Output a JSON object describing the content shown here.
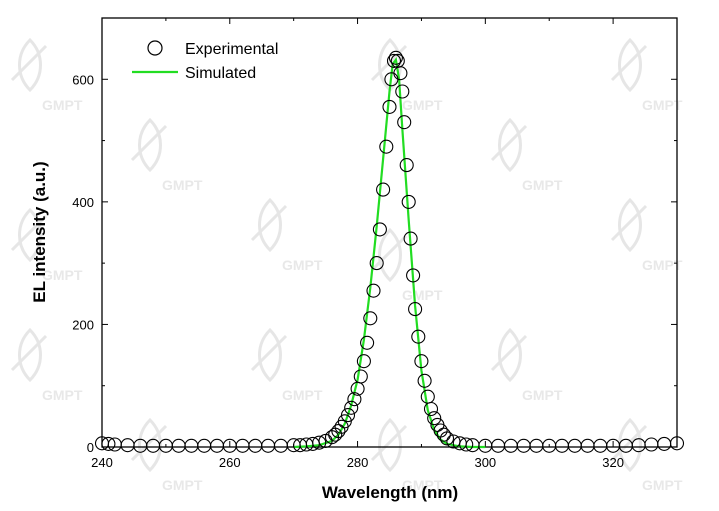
{
  "watermark": {
    "text": "GMPT",
    "color": "#e6e6e6"
  },
  "chart_data": {
    "type": "scatter",
    "xlabel": "Wavelength (nm)",
    "ylabel": "EL intensity (a.u.)",
    "xlim": [
      240,
      330
    ],
    "ylim": [
      0,
      700
    ],
    "xticks": [
      240,
      260,
      280,
      300,
      320
    ],
    "yticks": [
      0,
      200,
      400,
      600
    ],
    "grid": false,
    "legend_position": "top-left",
    "series": [
      {
        "name": "Experimental",
        "kind": "marker-open-circle",
        "color": "#000000",
        "x": [
          240,
          241,
          242,
          244,
          246,
          248,
          250,
          252,
          254,
          256,
          258,
          260,
          262,
          264,
          266,
          268,
          270,
          271,
          272,
          273,
          274,
          275,
          276,
          276.5,
          277,
          277.5,
          278,
          278.5,
          279,
          279.5,
          280,
          280.5,
          281,
          281.5,
          282,
          282.5,
          283,
          283.5,
          284,
          284.5,
          285,
          285.3,
          285.7,
          286,
          286.3,
          286.7,
          287,
          287.3,
          287.7,
          288,
          288.3,
          288.7,
          289,
          289.5,
          290,
          290.5,
          291,
          291.5,
          292,
          292.5,
          293,
          293.5,
          294,
          295,
          296,
          297,
          298,
          300,
          302,
          304,
          306,
          308,
          310,
          312,
          314,
          316,
          318,
          320,
          322,
          324,
          326,
          328,
          330
        ],
        "y": [
          6,
          5,
          4,
          3,
          2,
          2,
          2,
          2,
          2,
          2,
          2,
          2,
          2,
          2,
          2,
          2,
          3,
          3,
          4,
          5,
          7,
          10,
          16,
          20,
          26,
          33,
          42,
          52,
          64,
          78,
          95,
          115,
          140,
          170,
          210,
          255,
          300,
          355,
          420,
          490,
          555,
          600,
          630,
          635,
          630,
          610,
          580,
          530,
          460,
          400,
          340,
          280,
          225,
          180,
          140,
          108,
          82,
          62,
          47,
          36,
          27,
          20,
          14,
          9,
          6,
          4,
          3,
          2,
          2,
          2,
          2,
          2,
          2,
          2,
          2,
          2,
          2,
          2,
          2,
          3,
          4,
          5,
          6
        ]
      },
      {
        "name": "Simulated",
        "kind": "line",
        "color": "#22dd22",
        "x": [
          270,
          272,
          274,
          276,
          277,
          278,
          279,
          280,
          281,
          282,
          283,
          284,
          285,
          285.5,
          286,
          286.5,
          287,
          288,
          289,
          290,
          291,
          292,
          293,
          294,
          296,
          298,
          300
        ],
        "y": [
          0,
          1,
          3,
          10,
          20,
          38,
          68,
          110,
          175,
          260,
          360,
          470,
          580,
          625,
          632,
          600,
          520,
          370,
          230,
          125,
          60,
          28,
          12,
          5,
          1,
          0,
          0
        ]
      }
    ]
  }
}
